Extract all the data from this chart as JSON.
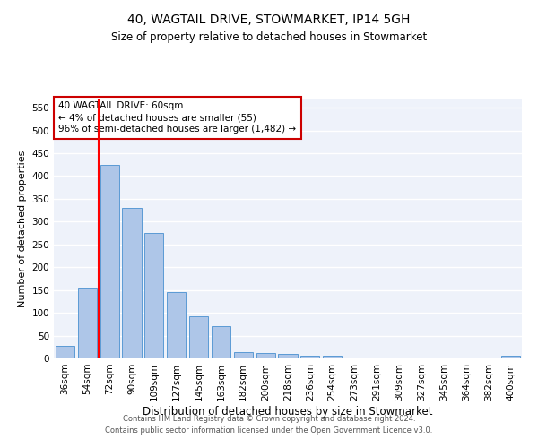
{
  "title": "40, WAGTAIL DRIVE, STOWMARKET, IP14 5GH",
  "subtitle": "Size of property relative to detached houses in Stowmarket",
  "xlabel": "Distribution of detached houses by size in Stowmarket",
  "ylabel": "Number of detached properties",
  "categories": [
    "36sqm",
    "54sqm",
    "72sqm",
    "90sqm",
    "109sqm",
    "127sqm",
    "145sqm",
    "163sqm",
    "182sqm",
    "200sqm",
    "218sqm",
    "236sqm",
    "254sqm",
    "273sqm",
    "291sqm",
    "309sqm",
    "327sqm",
    "345sqm",
    "364sqm",
    "382sqm",
    "400sqm"
  ],
  "values": [
    28,
    155,
    425,
    330,
    275,
    145,
    92,
    70,
    13,
    11,
    10,
    5,
    5,
    1,
    0,
    1,
    0,
    0,
    0,
    0,
    5
  ],
  "bar_color": "#aec6e8",
  "bar_edge_color": "#5b9bd5",
  "red_line_x": 1.5,
  "ylim": [
    0,
    570
  ],
  "yticks": [
    0,
    50,
    100,
    150,
    200,
    250,
    300,
    350,
    400,
    450,
    500,
    550
  ],
  "annotation_text": "40 WAGTAIL DRIVE: 60sqm\n← 4% of detached houses are smaller (55)\n96% of semi-detached houses are larger (1,482) →",
  "annotation_box_color": "#ffffff",
  "annotation_box_edge": "#cc0000",
  "footer1": "Contains HM Land Registry data © Crown copyright and database right 2024.",
  "footer2": "Contains public sector information licensed under the Open Government Licence v3.0.",
  "background_color": "#eef2fa",
  "grid_color": "#ffffff",
  "title_fontsize": 10,
  "subtitle_fontsize": 8.5,
  "xlabel_fontsize": 8.5,
  "ylabel_fontsize": 8,
  "tick_fontsize": 7.5,
  "ann_fontsize": 7.5,
  "footer_fontsize": 6.0
}
